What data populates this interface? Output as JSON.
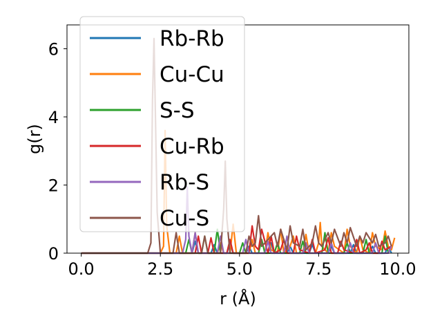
{
  "chart_data": {
    "type": "line",
    "xlabel": "r (Å)",
    "ylabel": "g(r)",
    "xlim": [
      -0.45,
      10.35
    ],
    "ylim": [
      0,
      6.7
    ],
    "xticks": [
      0.0,
      2.5,
      5.0,
      7.5,
      10.0
    ],
    "xtick_labels": [
      "0.0",
      "2.5",
      "5.0",
      "7.5",
      "10.0"
    ],
    "yticks": [
      0,
      2,
      4,
      6
    ],
    "ytick_labels": [
      "0",
      "2",
      "4",
      "6"
    ],
    "grid": false,
    "legend_position": "top-left",
    "series": [
      {
        "name": "Rb-Rb",
        "color": "#1f77b4",
        "x": [
          0,
          3.5,
          3.6,
          3.7,
          4.1,
          4.2,
          4.3,
          4.6,
          4.7,
          4.8,
          5.2,
          5.3,
          5.4,
          5.9,
          6.0,
          6.1,
          6.5,
          6.6,
          6.7,
          7.2,
          7.3,
          7.4,
          7.8,
          7.9,
          8.0,
          8.5,
          8.6,
          8.7,
          9.1,
          9.2,
          9.3,
          9.6,
          9.7,
          9.8
        ],
        "y": [
          0,
          0,
          0.35,
          0,
          0,
          0.25,
          0,
          0,
          0.3,
          0,
          0,
          0.2,
          0,
          0,
          0.3,
          0,
          0,
          0.2,
          0,
          0,
          0.25,
          0,
          0,
          0.2,
          0,
          0,
          0.25,
          0,
          0,
          0.2,
          0,
          0,
          0.2,
          0
        ]
      },
      {
        "name": "Cu-Cu",
        "color": "#ff7f0e",
        "x": [
          0,
          2.5,
          2.6,
          2.65,
          2.7,
          2.8,
          3.0,
          3.1,
          3.2,
          3.5,
          3.6,
          3.7,
          4.3,
          4.4,
          4.5,
          4.7,
          4.8,
          4.9,
          5.3,
          5.4,
          5.5,
          5.8,
          5.9,
          6.0,
          6.2,
          6.3,
          6.4,
          6.6,
          6.7,
          6.8,
          7.0,
          7.1,
          7.2,
          7.4,
          7.5,
          7.55,
          7.6,
          7.8,
          7.9,
          8.0,
          8.3,
          8.4,
          8.5,
          8.7,
          8.8,
          8.9,
          9.1,
          9.2,
          9.3,
          9.5,
          9.6,
          9.7,
          9.8,
          9.9
        ],
        "y": [
          0,
          0,
          0.2,
          3.6,
          0.8,
          0,
          0,
          0.5,
          0,
          0,
          0.6,
          0,
          0,
          0.3,
          0,
          0,
          0.85,
          0,
          0,
          0.4,
          0,
          0,
          0.6,
          0.1,
          0,
          0.7,
          0,
          0.2,
          0.5,
          0,
          0,
          0.55,
          0,
          0,
          0.3,
          0.9,
          0.2,
          0,
          0.6,
          0.2,
          0,
          0.7,
          0.2,
          0,
          0.5,
          0.1,
          0,
          0.6,
          0.2,
          0.1,
          0.65,
          0.2,
          0.1,
          0.45
        ]
      },
      {
        "name": "S-S",
        "color": "#2ca02c",
        "x": [
          0,
          3.3,
          3.4,
          3.5,
          3.8,
          3.9,
          4.0,
          4.2,
          4.3,
          4.4,
          5.0,
          5.1,
          5.2,
          5.6,
          5.7,
          5.8,
          6.1,
          6.2,
          6.3,
          6.9,
          7.0,
          7.1,
          7.6,
          7.7,
          7.8,
          8.3,
          8.4,
          8.5,
          8.9,
          9.0,
          9.1,
          9.5,
          9.6,
          9.7
        ],
        "y": [
          0,
          0,
          0.4,
          0,
          0,
          0.5,
          0,
          0,
          0.7,
          0,
          0,
          0.3,
          0,
          0,
          0.4,
          0,
          0,
          0.3,
          0,
          0,
          0.35,
          0,
          0,
          0.6,
          0,
          0,
          0.3,
          0,
          0,
          0.4,
          0,
          0,
          0.5,
          0
        ]
      },
      {
        "name": "Cu-Rb",
        "color": "#d62728",
        "x": [
          0,
          3.6,
          3.7,
          3.8,
          4.0,
          4.1,
          4.2,
          4.6,
          4.7,
          4.8,
          5.3,
          5.4,
          5.5,
          5.6,
          5.7,
          5.9,
          6.0,
          6.1,
          6.3,
          6.4,
          6.5,
          6.7,
          6.8,
          6.9,
          7.2,
          7.3,
          7.4,
          7.7,
          7.8,
          7.9,
          8.1,
          8.2,
          8.3,
          8.6,
          8.7,
          8.8,
          9.0,
          9.1,
          9.2,
          9.4,
          9.5,
          9.6,
          9.8
        ],
        "y": [
          0,
          0,
          0.5,
          0,
          0,
          0.45,
          0,
          0,
          0.4,
          0,
          0,
          0.8,
          0.2,
          0.1,
          0.7,
          0,
          0.5,
          0,
          0.1,
          0.4,
          0,
          0,
          0.5,
          0.1,
          0,
          0.4,
          0,
          0.1,
          0.45,
          0,
          0,
          0.35,
          0.1,
          0,
          0.4,
          0,
          0.1,
          0.3,
          0,
          0,
          0.35,
          0.1,
          0.2
        ]
      },
      {
        "name": "Rb-S",
        "color": "#9467bd",
        "x": [
          0,
          3.2,
          3.3,
          3.35,
          3.4,
          3.5,
          3.6,
          3.7,
          4.3,
          4.4,
          4.5,
          5.1,
          5.2,
          5.3,
          5.8,
          5.9,
          6.0,
          6.4,
          6.5,
          6.6,
          7.0,
          7.1,
          7.2,
          7.8,
          7.9,
          8.0,
          8.4,
          8.5,
          8.6,
          9.2,
          9.3,
          9.4,
          9.7,
          9.8
        ],
        "y": [
          0,
          0,
          0.4,
          1.95,
          0.5,
          0,
          0.6,
          0,
          0,
          0.5,
          0,
          0,
          0.4,
          0,
          0,
          0.35,
          0,
          0,
          0.5,
          0,
          0,
          0.3,
          0,
          0,
          0.3,
          0,
          0,
          0.3,
          0,
          0,
          0.3,
          0,
          0,
          0.2
        ]
      },
      {
        "name": "Cu-S",
        "color": "#8c564b",
        "x": [
          0,
          2.0,
          2.1,
          2.2,
          2.25,
          2.3,
          2.4,
          2.5,
          2.9,
          3.0,
          3.1,
          3.8,
          3.9,
          4.0,
          4.4,
          4.5,
          4.55,
          4.6,
          4.7,
          4.8,
          5.2,
          5.3,
          5.4,
          5.5,
          5.6,
          5.7,
          5.8,
          6.1,
          6.2,
          6.3,
          6.5,
          6.6,
          6.7,
          6.9,
          7.0,
          7.1,
          7.3,
          7.4,
          7.5,
          7.6,
          7.8,
          7.9,
          8.0,
          8.2,
          8.3,
          8.4,
          8.5,
          8.7,
          8.8,
          8.9,
          9.0,
          9.2,
          9.3,
          9.4,
          9.6,
          9.7,
          9.8
        ],
        "y": [
          0,
          0,
          0,
          0.3,
          4.5,
          6.3,
          1.2,
          0,
          0,
          0.6,
          0,
          0,
          0.5,
          0,
          0,
          1.3,
          2.7,
          1.0,
          0,
          0,
          0,
          0.5,
          0.2,
          0.3,
          1.1,
          0.2,
          0.3,
          0.6,
          0.2,
          0.7,
          0.1,
          0.8,
          0.3,
          0.2,
          0.7,
          0.1,
          0.3,
          0.8,
          0.3,
          0.2,
          0.6,
          0.3,
          0.7,
          0.2,
          0.6,
          0.3,
          0.75,
          0.2,
          0.5,
          0.3,
          0.6,
          0.3,
          0.55,
          0.2,
          0.3,
          0.5,
          0.2
        ]
      }
    ]
  }
}
